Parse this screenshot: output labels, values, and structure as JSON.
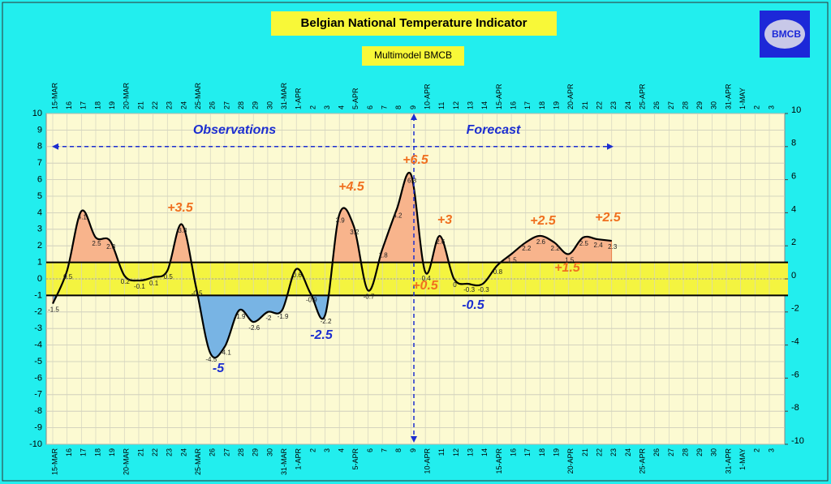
{
  "chart_data": {
    "type": "line",
    "title": "Belgian National Temperature Indicator",
    "subtitle": "Multimodel BMCB",
    "logo_text": "BMCB",
    "categories": [
      "15-MAR",
      "16",
      "17",
      "18",
      "19",
      "20-MAR",
      "21",
      "22",
      "23",
      "24",
      "25-MAR",
      "26",
      "27",
      "28",
      "29",
      "30",
      "31-MAR",
      "1-APR",
      "2",
      "3",
      "4",
      "5-APR",
      "6",
      "7",
      "8",
      "9",
      "10-APR",
      "11",
      "12",
      "13",
      "14",
      "15-APR",
      "16",
      "17",
      "18",
      "19",
      "20-APR",
      "21",
      "22",
      "23",
      "24",
      "25-APR",
      "26",
      "27",
      "28",
      "29",
      "30",
      "31-APR",
      "1-MAY",
      "2",
      "3"
    ],
    "series": [
      {
        "name": "Indicator",
        "color": "#000000",
        "values": [
          -1.5,
          0.5,
          4.1,
          2.5,
          2.3,
          0.2,
          -0.1,
          0.1,
          0.5,
          3.3,
          -0.5,
          -4.5,
          -4.1,
          -1.9,
          -2.6,
          -2,
          -1.9,
          0.6,
          -0.9,
          -2.2,
          3.9,
          3.2,
          -0.7,
          1.8,
          4.2,
          6.3,
          0.4,
          2.6,
          0,
          -0.3,
          -0.3,
          0.8,
          1.5,
          2.2,
          2.6,
          2.2,
          1.5,
          2.5,
          2.4,
          2.3,
          null,
          null,
          null,
          null,
          null,
          null,
          null,
          null,
          null,
          null,
          null
        ]
      }
    ],
    "ylim": [
      -10,
      10
    ],
    "yticks": [
      -10,
      -9,
      -8,
      -7,
      -6,
      -5,
      -4,
      -3,
      -2,
      -1,
      0,
      1,
      2,
      3,
      4,
      5,
      6,
      7,
      8,
      9,
      10
    ],
    "y2lim": [
      -10,
      10
    ],
    "y2ticks": [
      -10,
      -8,
      -6,
      -4,
      -2,
      0,
      2,
      4,
      6,
      8,
      10
    ],
    "normal_band": [
      -1,
      1
    ],
    "warm_color": "#f8b48c",
    "cold_color": "#78b4e4",
    "band_color": "#f4f440",
    "grid": true,
    "annotations": [
      {
        "text": "Observations",
        "color": "#1c2ed0"
      },
      {
        "text": "Forecast",
        "color": "#1c2ed0"
      },
      {
        "text": "+3.5",
        "color": "#f07020"
      },
      {
        "text": "+4.5",
        "color": "#f07020"
      },
      {
        "text": "+6.5",
        "color": "#f07020"
      },
      {
        "text": "+3",
        "color": "#f07020"
      },
      {
        "text": "+2.5",
        "color": "#f07020"
      },
      {
        "text": "+2.5",
        "color": "#f07020"
      },
      {
        "text": "+1.5",
        "color": "#f07020"
      },
      {
        "text": "+0.5",
        "color": "#f07020"
      },
      {
        "text": "-5",
        "color": "#1c2ed0"
      },
      {
        "text": "-2.5",
        "color": "#1c2ed0"
      },
      {
        "text": "-0.5",
        "color": "#1c2ed0"
      }
    ]
  }
}
